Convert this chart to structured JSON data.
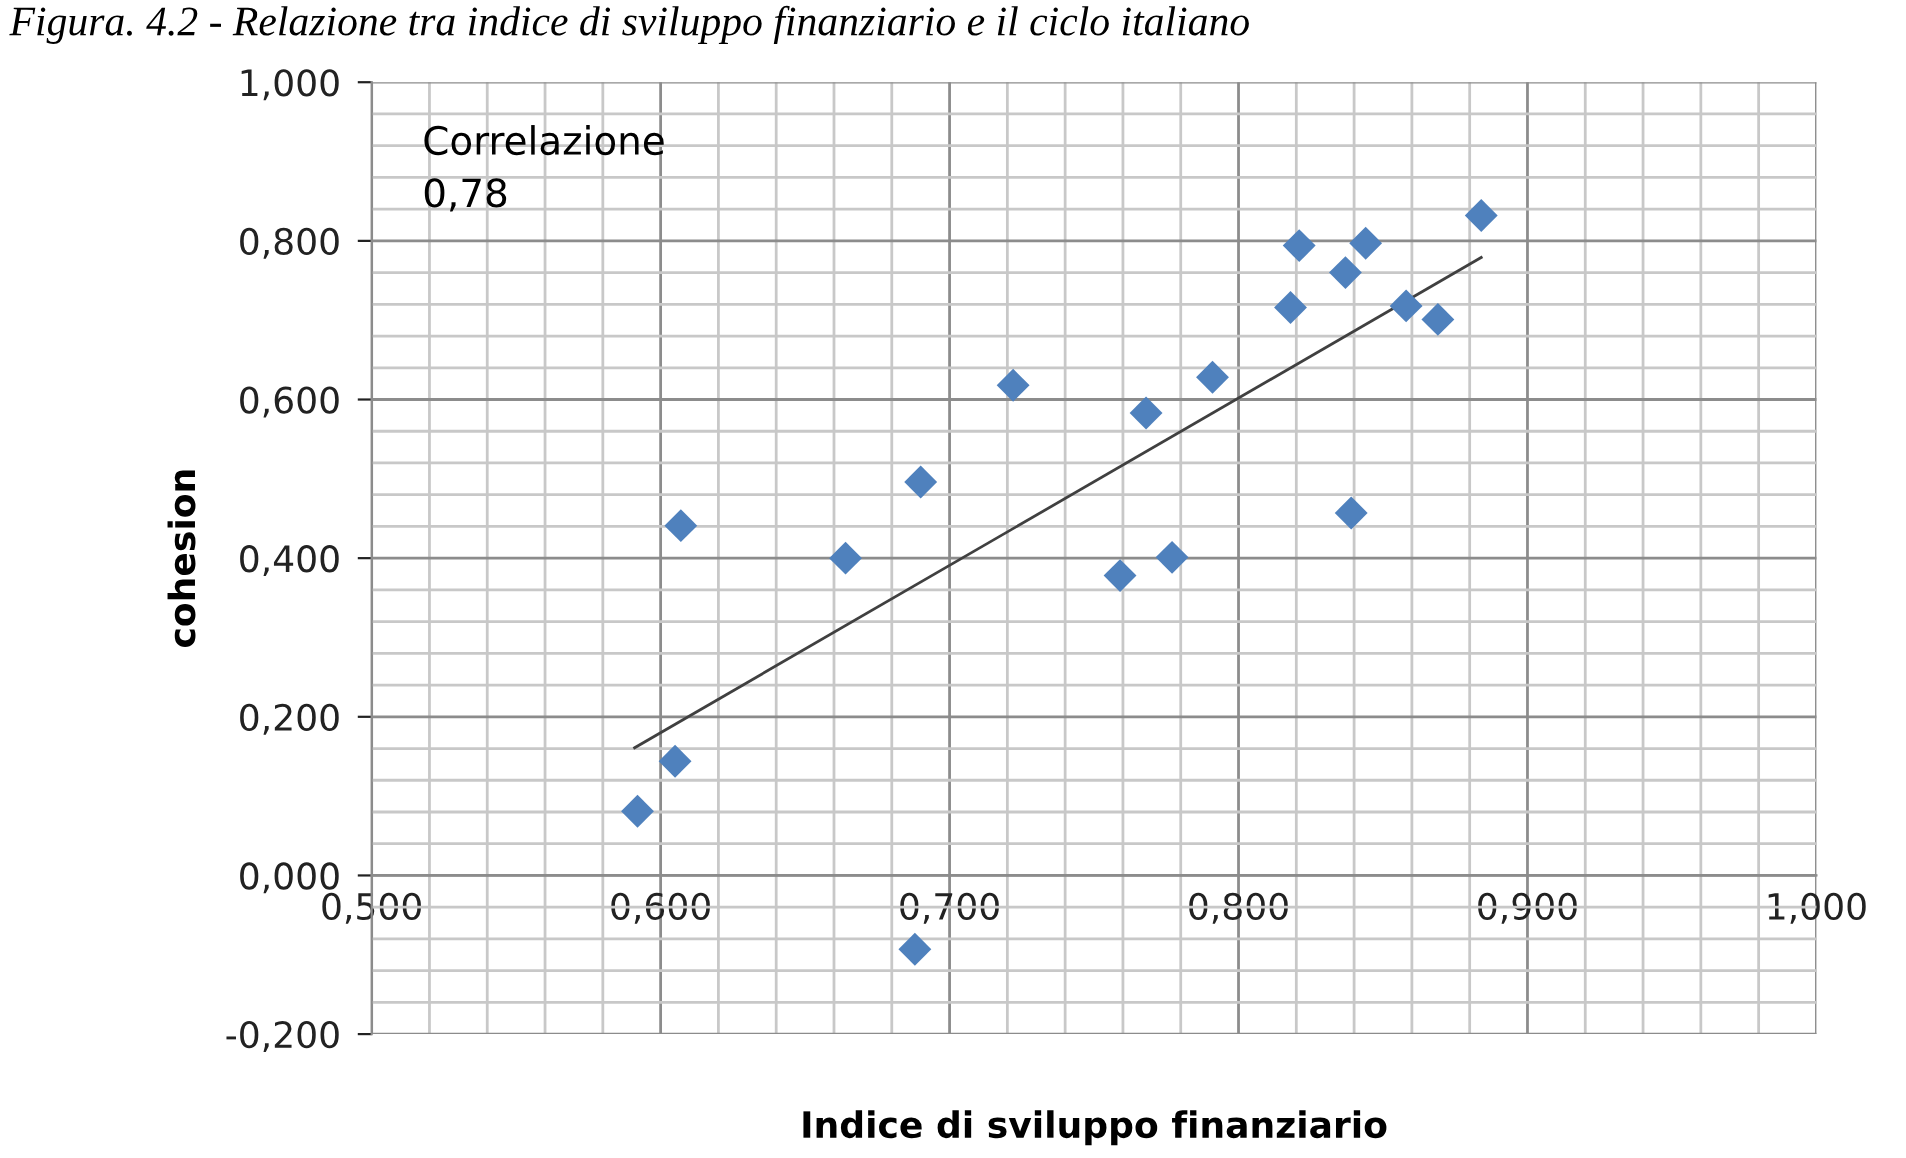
{
  "chart_data": {
    "type": "scatter",
    "title": "Figura. 4.2 - Relazione tra indice di sviluppo finanziario e il ciclo italiano",
    "xlabel": "Indice di sviluppo finanziario",
    "ylabel": "cohesion",
    "annotations": [
      "Correlazione\n0,78"
    ],
    "marker": "diamond",
    "grid": true,
    "legend": false,
    "xlim": [
      0.5,
      1.0
    ],
    "ylim": [
      -0.2,
      1.0
    ],
    "xticks": [
      {
        "value": 0.5,
        "label": "0,500"
      },
      {
        "value": 0.6,
        "label": "0,600"
      },
      {
        "value": 0.7,
        "label": "0,700"
      },
      {
        "value": 0.8,
        "label": "0,800"
      },
      {
        "value": 0.9,
        "label": "0,900"
      },
      {
        "value": 1.0,
        "label": "1,000"
      }
    ],
    "yticks": [
      {
        "value": -0.2,
        "label": "-0,200"
      },
      {
        "value": 0.0,
        "label": "0,000"
      },
      {
        "value": 0.2,
        "label": "0,200"
      },
      {
        "value": 0.4,
        "label": "0,400"
      },
      {
        "value": 0.6,
        "label": "0,600"
      },
      {
        "value": 0.8,
        "label": "0,800"
      },
      {
        "value": 1.0,
        "label": "1,000"
      }
    ],
    "series": [
      {
        "color": "#4f81bd",
        "x": [
          0.592,
          0.605,
          0.607,
          0.664,
          0.69,
          0.688,
          0.722,
          0.759,
          0.768,
          0.777,
          0.791,
          0.818,
          0.821,
          0.837,
          0.839,
          0.844,
          0.858,
          0.869,
          0.884
        ],
        "values": [
          0.081,
          0.144,
          0.441,
          0.4,
          0.496,
          -0.093,
          0.618,
          0.378,
          0.583,
          0.401,
          0.628,
          0.716,
          0.794,
          0.76,
          0.457,
          0.797,
          0.718,
          0.701,
          0.832
        ]
      },
      {
        "type": "line",
        "color": "#404040",
        "marker": "none",
        "line_style": "solid",
        "x": [
          0.591,
          0.884
        ],
        "values": [
          0.161,
          0.779
        ]
      }
    ]
  }
}
